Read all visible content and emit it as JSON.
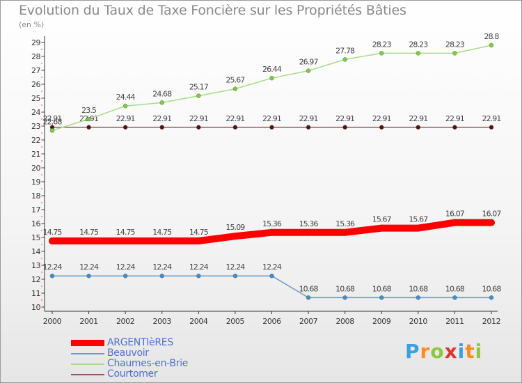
{
  "header": {
    "title": "Evolution du Taux de Taxe Foncière sur les Propriétés Bâties",
    "subtitle": "(en %)"
  },
  "chart_data": {
    "type": "line",
    "x": [
      "2000",
      "2001",
      "2002",
      "2003",
      "2004",
      "2005",
      "2006",
      "2007",
      "2008",
      "2009",
      "2010",
      "2011",
      "2012"
    ],
    "ylim": [
      10,
      29
    ],
    "yticks": [
      10,
      11,
      12,
      13,
      14,
      15,
      16,
      17,
      18,
      19,
      20,
      21,
      22,
      23,
      24,
      25,
      26,
      27,
      28,
      29
    ],
    "grid": false,
    "legend_position": "bottom-left",
    "series": [
      {
        "name": "ARGENTIèRES",
        "color": "#ff0000",
        "values": [
          14.75,
          14.75,
          14.75,
          14.75,
          14.75,
          15.09,
          15.36,
          15.36,
          15.36,
          15.67,
          15.67,
          16.07,
          16.07
        ],
        "labels": [
          "14.75",
          "14.75",
          "14.75",
          "14.75",
          "14.75",
          "15.09",
          "15.36",
          "15.36",
          "15.36",
          "15.67",
          "15.67",
          "16.07",
          "16.07"
        ]
      },
      {
        "name": "Beauvoir",
        "color": "#6e9ac4",
        "marker_color": "#3f8fd1",
        "values": [
          12.24,
          12.24,
          12.24,
          12.24,
          12.24,
          12.24,
          12.24,
          10.68,
          10.68,
          10.68,
          10.68,
          10.68,
          10.68
        ],
        "labels": [
          "12.24",
          "12.24",
          "12.24",
          "12.24",
          "12.24",
          "12.24",
          "12.24",
          "10.68",
          "10.68",
          "10.68",
          "10.68",
          "10.68",
          "10.68"
        ]
      },
      {
        "name": "Chaumes-en-Brie",
        "color": "#a8dc86",
        "marker_color": "#7ccf3c",
        "values": [
          22.68,
          23.5,
          24.44,
          24.68,
          25.17,
          25.67,
          26.44,
          26.97,
          27.78,
          28.23,
          28.23,
          28.23,
          28.8
        ],
        "labels": [
          "22.68",
          "23.5",
          "24.44",
          "24.68",
          "25.17",
          "25.67",
          "26.44",
          "26.97",
          "27.78",
          "28.23",
          "28.23",
          "28.23",
          "28.8"
        ]
      },
      {
        "name": "Courtomer",
        "color": "#8b5a5a",
        "marker_color": "#5a0f0f",
        "values": [
          22.91,
          22.91,
          22.91,
          22.91,
          22.91,
          22.91,
          22.91,
          22.91,
          22.91,
          22.91,
          22.91,
          22.91,
          22.91
        ],
        "labels": [
          "22.91",
          "22.91",
          "22.91",
          "22.91",
          "22.91",
          "22.91",
          "22.91",
          "22.91",
          "22.91",
          "22.91",
          "22.91",
          "22.91",
          "22.91"
        ]
      }
    ]
  },
  "brand": {
    "letters": [
      {
        "ch": "P",
        "color": "#3aa0e0"
      },
      {
        "ch": "r",
        "color": "#ff8c1a"
      },
      {
        "ch": "o",
        "color": "#8dc63f"
      },
      {
        "ch": "x",
        "color": "#e0332f"
      },
      {
        "ch": "i",
        "color": "#3aa0e0"
      },
      {
        "ch": "t",
        "color": "#ff8c1a"
      },
      {
        "ch": "i",
        "color": "#8dc63f"
      }
    ]
  }
}
